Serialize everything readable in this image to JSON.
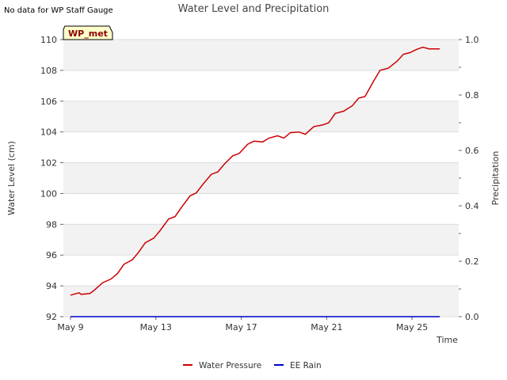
{
  "header": {
    "note": "No data for WP Staff Gauge",
    "badge": "WP_met"
  },
  "chart_data": {
    "type": "line",
    "title": "Water Level and Precipitation",
    "xlabel": "Time",
    "ylabel": "Water Level (cm)",
    "y2label": "Precipitation",
    "x_unit": "day",
    "x_start": "May 9",
    "xlim": [
      0,
      18
    ],
    "ylim": [
      92,
      110
    ],
    "y2lim": [
      0,
      1.0
    ],
    "x_ticks": [
      {
        "value": 0,
        "label": "May 9"
      },
      {
        "value": 4,
        "label": "May 13"
      },
      {
        "value": 8,
        "label": "May 17"
      },
      {
        "value": 12,
        "label": "May 21"
      },
      {
        "value": 16,
        "label": "May 25"
      }
    ],
    "y_ticks": [
      92,
      94,
      96,
      98,
      100,
      102,
      104,
      106,
      108,
      110
    ],
    "y2_ticks": [
      "0.0",
      "0.2",
      "0.4",
      "0.6",
      "0.8",
      "1.0"
    ],
    "grid": "horizontal bands",
    "legend_position": "bottom-center",
    "series": [
      {
        "name": "Water Pressure",
        "axis": "left",
        "color": "#cc0000",
        "points": [
          [
            0.0,
            93.4
          ],
          [
            0.4,
            93.55
          ],
          [
            0.5,
            93.45
          ],
          [
            0.9,
            93.5
          ],
          [
            1.1,
            93.7
          ],
          [
            1.5,
            94.2
          ],
          [
            1.9,
            94.45
          ],
          [
            2.2,
            94.8
          ],
          [
            2.5,
            95.4
          ],
          [
            2.9,
            95.7
          ],
          [
            3.2,
            96.2
          ],
          [
            3.5,
            96.8
          ],
          [
            3.9,
            97.1
          ],
          [
            4.2,
            97.6
          ],
          [
            4.6,
            98.35
          ],
          [
            4.9,
            98.5
          ],
          [
            5.2,
            99.1
          ],
          [
            5.6,
            99.85
          ],
          [
            5.9,
            100.05
          ],
          [
            6.2,
            100.6
          ],
          [
            6.6,
            101.25
          ],
          [
            6.9,
            101.4
          ],
          [
            7.2,
            101.9
          ],
          [
            7.6,
            102.45
          ],
          [
            7.9,
            102.6
          ],
          [
            8.3,
            103.2
          ],
          [
            8.6,
            103.4
          ],
          [
            9.0,
            103.35
          ],
          [
            9.3,
            103.6
          ],
          [
            9.7,
            103.75
          ],
          [
            10.0,
            103.6
          ],
          [
            10.3,
            103.95
          ],
          [
            10.7,
            104.0
          ],
          [
            11.0,
            103.85
          ],
          [
            11.4,
            104.35
          ],
          [
            11.8,
            104.45
          ],
          [
            12.1,
            104.6
          ],
          [
            12.4,
            105.2
          ],
          [
            12.8,
            105.35
          ],
          [
            13.2,
            105.7
          ],
          [
            13.5,
            106.2
          ],
          [
            13.8,
            106.3
          ],
          [
            14.2,
            107.3
          ],
          [
            14.5,
            108.0
          ],
          [
            14.9,
            108.15
          ],
          [
            15.3,
            108.6
          ],
          [
            15.6,
            109.05
          ],
          [
            15.9,
            109.15
          ],
          [
            16.2,
            109.35
          ],
          [
            16.5,
            109.5
          ],
          [
            16.8,
            109.4
          ],
          [
            17.3,
            109.4
          ]
        ]
      },
      {
        "name": "EE Rain",
        "axis": "right",
        "color": "#0000cc",
        "points": [
          [
            0.0,
            0.0
          ],
          [
            17.3,
            0.0
          ]
        ]
      }
    ]
  }
}
